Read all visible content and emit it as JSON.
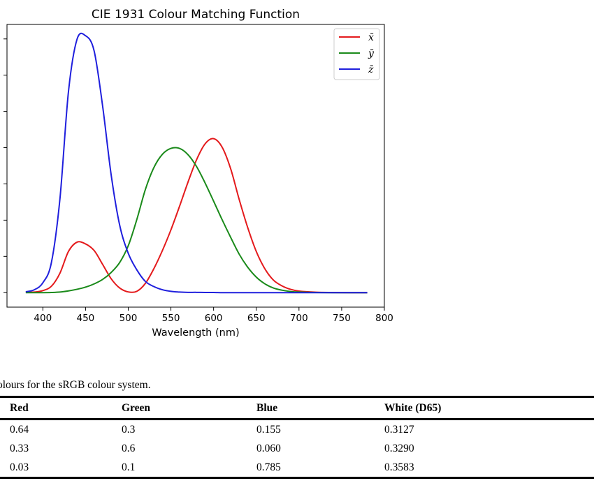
{
  "chart_data": {
    "type": "line",
    "title": "CIE 1931 Colour Matching Function",
    "xlabel": "Wavelength (nm)",
    "ylabel": "",
    "xlim": [
      358,
      800
    ],
    "ylim": [
      -0.1,
      1.85
    ],
    "xticks": [
      400,
      450,
      500,
      550,
      600,
      650,
      700,
      750,
      800
    ],
    "yticks_unlabeled": [
      0,
      0.25,
      0.5,
      0.75,
      1.0,
      1.25,
      1.5,
      1.75
    ],
    "legend_position": "top-right",
    "x": [
      380,
      390,
      400,
      410,
      420,
      430,
      440,
      450,
      460,
      470,
      480,
      490,
      500,
      510,
      520,
      530,
      540,
      550,
      560,
      570,
      580,
      590,
      600,
      610,
      620,
      630,
      640,
      650,
      660,
      670,
      680,
      690,
      700,
      720,
      740,
      760,
      780
    ],
    "series": [
      {
        "name": "x̄",
        "color": "#e41a1c",
        "values": [
          0.001,
          0.004,
          0.014,
          0.044,
          0.134,
          0.284,
          0.348,
          0.336,
          0.291,
          0.195,
          0.096,
          0.032,
          0.005,
          0.009,
          0.063,
          0.165,
          0.29,
          0.433,
          0.594,
          0.762,
          0.916,
          1.026,
          1.062,
          1.003,
          0.854,
          0.642,
          0.448,
          0.284,
          0.165,
          0.087,
          0.047,
          0.023,
          0.011,
          0.003,
          0.001,
          0.0,
          0.0
        ]
      },
      {
        "name": "ȳ",
        "color": "#1a8a1a",
        "values": [
          0.0,
          0.0,
          0.0,
          0.001,
          0.004,
          0.012,
          0.023,
          0.038,
          0.06,
          0.091,
          0.139,
          0.208,
          0.323,
          0.503,
          0.71,
          0.862,
          0.954,
          0.995,
          0.995,
          0.952,
          0.87,
          0.757,
          0.631,
          0.503,
          0.381,
          0.265,
          0.175,
          0.107,
          0.061,
          0.032,
          0.017,
          0.008,
          0.004,
          0.001,
          0.0,
          0.0,
          0.0
        ]
      },
      {
        "name": "z̄",
        "color": "#1f1fdd",
        "values": [
          0.006,
          0.02,
          0.068,
          0.207,
          0.646,
          1.386,
          1.747,
          1.772,
          1.669,
          1.288,
          0.813,
          0.465,
          0.272,
          0.158,
          0.078,
          0.042,
          0.02,
          0.009,
          0.004,
          0.002,
          0.002,
          0.001,
          0.001,
          0.0,
          0.0,
          0.0,
          0.0,
          0.0,
          0.0,
          0.0,
          0.0,
          0.0,
          0.0,
          0.0,
          0.0,
          0.0,
          0.0
        ]
      }
    ]
  },
  "caption": "olours for the sRGB colour system.",
  "table": {
    "headers": [
      "Red",
      "Green",
      "Blue",
      "White (D65)"
    ],
    "rows": [
      [
        "0.64",
        "0.3",
        "0.155",
        "0.3127"
      ],
      [
        "0.33",
        "0.6",
        "0.060",
        "0.3290"
      ],
      [
        "0.03",
        "0.1",
        "0.785",
        "0.3583"
      ]
    ]
  }
}
